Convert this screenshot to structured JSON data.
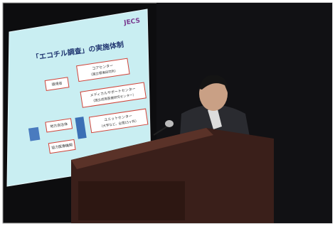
{
  "slide": {
    "logo": "JECS",
    "title": "「エコチル調査」の実施体制",
    "boxes": [
      {
        "label": "環境省"
      },
      {
        "label": "コアセンター",
        "sub": "（国立環境研究所）"
      },
      {
        "label": "メディカルサポートセンター",
        "sub": "（国立成育医療研究センター）"
      },
      {
        "label": "地方自治体"
      },
      {
        "label": "ユニットセンター",
        "sub": "（大学など、全国15ヶ所）"
      },
      {
        "label": "協力医療機関"
      }
    ]
  }
}
